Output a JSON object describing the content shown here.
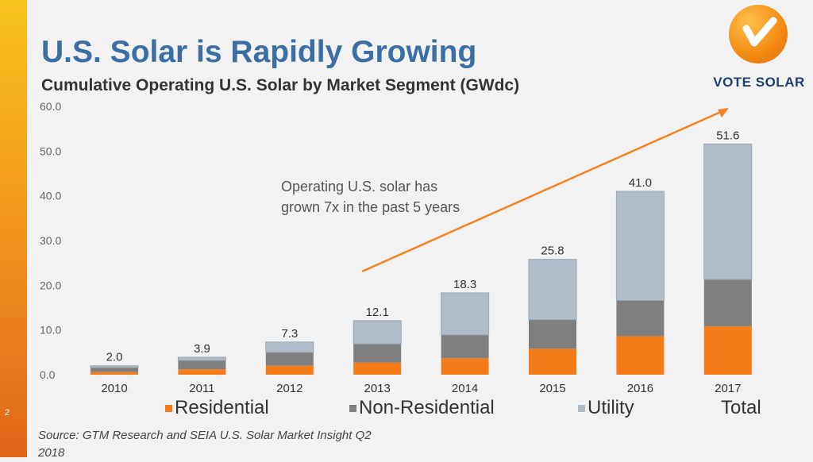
{
  "slide": {
    "number": "2"
  },
  "header": {
    "title": "U.S. Solar is Rapidly Growing",
    "subtitle": "Cumulative Operating U.S. Solar by Market Segment (GWdc)"
  },
  "logo": {
    "text": "VOTE SOLAR"
  },
  "annotation": {
    "text": "Operating U.S. solar has grown 7x in the past 5 years"
  },
  "source": {
    "text": "Source: GTM Research and SEIA U.S. Solar Market Insight Q2 2018"
  },
  "colors": {
    "residential": "#f47b17",
    "non_residential": "#7f7f7f",
    "utility": "#b0bcc8",
    "arrow": "#f5821f",
    "text": "#333333"
  },
  "chart_data": {
    "type": "bar",
    "stacked": true,
    "title": "Cumulative Operating U.S. Solar by Market Segment (GWdc)",
    "xlabel": "",
    "ylabel": "",
    "ylim": [
      0,
      60
    ],
    "yticks": [
      "0.0",
      "10.0",
      "20.0",
      "30.0",
      "40.0",
      "50.0",
      "60.0"
    ],
    "categories": [
      "2010",
      "2011",
      "2012",
      "2013",
      "2014",
      "2015",
      "2016",
      "2017"
    ],
    "series": [
      {
        "name": "Residential",
        "values": [
          0.6,
          1.2,
          2.0,
          2.7,
          3.7,
          5.8,
          8.6,
          10.8
        ]
      },
      {
        "name": "Non-Residential",
        "values": [
          1.0,
          2.0,
          3.0,
          4.2,
          5.2,
          6.5,
          8.0,
          10.5
        ]
      },
      {
        "name": "Utility",
        "values": [
          0.4,
          0.7,
          2.3,
          5.2,
          9.4,
          13.5,
          24.4,
          30.3
        ]
      }
    ],
    "totals": [
      "2.0",
      "3.9",
      "7.3",
      "12.1",
      "18.3",
      "25.8",
      "41.0",
      "51.6"
    ],
    "legend": [
      "Residential",
      "Non-Residential",
      "Utility",
      "Total"
    ]
  }
}
